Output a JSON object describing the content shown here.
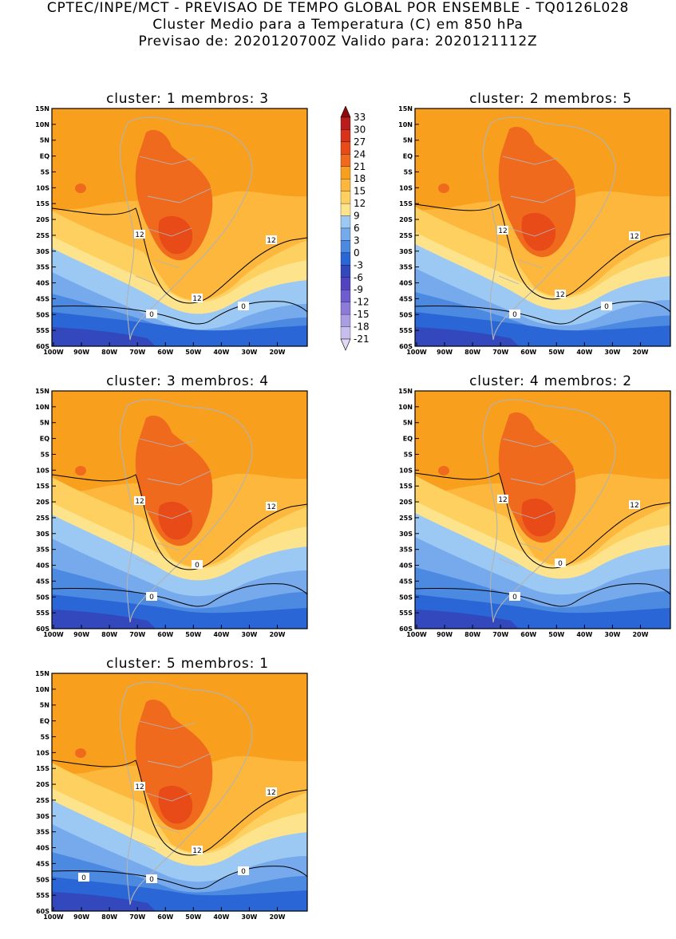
{
  "header": {
    "line1": "CPTEC/INPE/MCT - PREVISAO DE TEMPO GLOBAL POR ENSEMBLE - TQ0126L028",
    "line2": "Cluster Medio para a Temperatura (C) em 850 hPa",
    "line3": "Previsao de: 2020120700Z   Valido para: 2020121112Z"
  },
  "axes": {
    "lat_labels": [
      "15N",
      "10N",
      "5N",
      "EQ",
      "5S",
      "10S",
      "15S",
      "20S",
      "25S",
      "30S",
      "35S",
      "40S",
      "45S",
      "50S",
      "55S",
      "60S"
    ],
    "lon_labels": [
      "100W",
      "90W",
      "80W",
      "70W",
      "60W",
      "50W",
      "40W",
      "30W",
      "20W"
    ]
  },
  "colorbar": {
    "levels": [
      "33",
      "30",
      "27",
      "24",
      "21",
      "18",
      "15",
      "12",
      "9",
      "6",
      "3",
      "0",
      "-3",
      "-6",
      "-9",
      "-12",
      "-15",
      "-18",
      "-21"
    ],
    "colors": [
      "#8e0a0a",
      "#b81c1c",
      "#d8321c",
      "#e84a18",
      "#f06a1e",
      "#f8a01e",
      "#fcb73c",
      "#fdd060",
      "#fde48c",
      "#9cc8f4",
      "#76aaec",
      "#4c8ae2",
      "#2a66d6",
      "#3348bc",
      "#5244c0",
      "#6e5cd0",
      "#8e7ad8",
      "#aa9ee2",
      "#c8beee",
      "#e0d8f4"
    ]
  },
  "panels": [
    {
      "title": "cluster: 1   membros: 3",
      "contour_labels": [
        "12",
        "12",
        "12",
        "0",
        "0"
      ]
    },
    {
      "title": "cluster: 2   membros: 5",
      "contour_labels": [
        "12",
        "12",
        "12",
        "0",
        "0"
      ]
    },
    {
      "title": "cluster: 3   membros: 4",
      "contour_labels": [
        "12",
        "12",
        "0",
        "0"
      ]
    },
    {
      "title": "cluster: 4   membros: 2",
      "contour_labels": [
        "12",
        "12",
        "0",
        "0"
      ]
    },
    {
      "title": "cluster: 5   membros: 1",
      "contour_labels": [
        "12",
        "12",
        "12",
        "0",
        "0",
        "0"
      ]
    }
  ]
}
